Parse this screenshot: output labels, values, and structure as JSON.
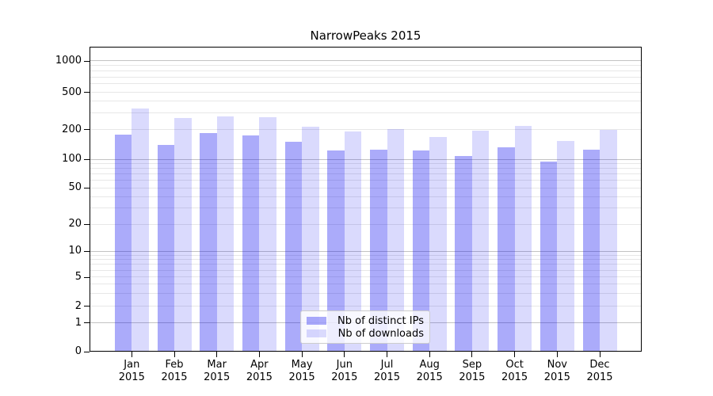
{
  "chart_data": {
    "type": "bar",
    "title": "NarrowPeaks 2015",
    "months": [
      "Jan",
      "Feb",
      "Mar",
      "Apr",
      "May",
      "Jun",
      "Jul",
      "Aug",
      "Sep",
      "Oct",
      "Nov",
      "Dec"
    ],
    "year": "2015",
    "series": [
      {
        "name": "Nb of distinct IPs",
        "color": "#0a0af0",
        "alpha": 0.34,
        "values": [
          178,
          140,
          186,
          176,
          152,
          124,
          126,
          124,
          109,
          133,
          95,
          126
        ]
      },
      {
        "name": "Nb of downloads",
        "color": "#0a0af0",
        "alpha": 0.15,
        "values": [
          340,
          270,
          280,
          273,
          216,
          193,
          203,
          169,
          198,
          220,
          154,
          200
        ]
      }
    ],
    "y_axis": {
      "scale": "symlog",
      "ticks": [
        0,
        1,
        2,
        5,
        10,
        20,
        50,
        100,
        200,
        500,
        1000
      ],
      "range": [
        0,
        1300
      ]
    },
    "x_axis": {
      "tick_label_format": "Month over year, two lines"
    },
    "grid": true,
    "legend": {
      "position": "lower center"
    },
    "colors": {
      "bar_dark_on_white": "#abaaf9",
      "bar_light_on_white": "#dadafd",
      "grid_major": "#c3c3c3",
      "grid_minor": "#e7e7e7"
    }
  }
}
